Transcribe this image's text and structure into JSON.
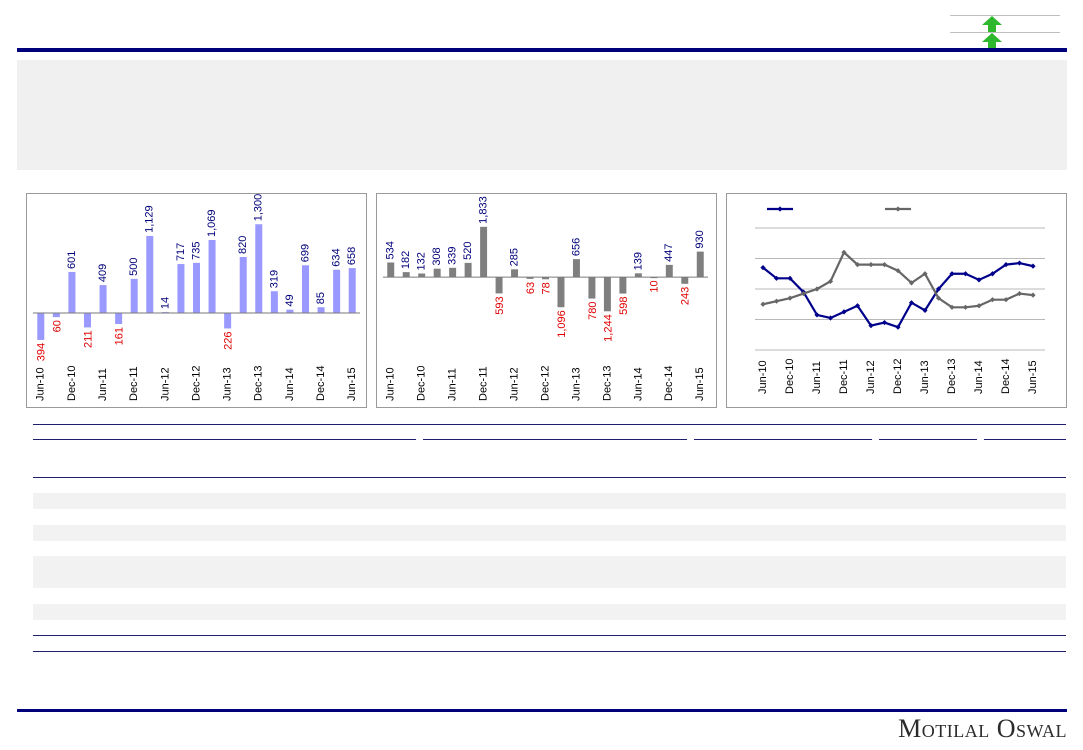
{
  "colors": {
    "brand_navy": "#00007a",
    "bar_blue": "#9999ff",
    "bar_grey": "#7f7f7f",
    "label_positive": "#00007a",
    "label_negative": "#e00000",
    "series_navy": "#00008b",
    "series_grey": "#666666",
    "arrow_green": "#2eb82e"
  },
  "icons": {
    "trend_arrows": [
      "up-arrow-icon",
      "up-arrow-icon"
    ]
  },
  "brand": {
    "logo_text": "Motilal Oswal"
  },
  "chart_data": [
    {
      "type": "bar",
      "categories": [
        "Jun-10",
        "Sep-10",
        "Dec-10",
        "Mar-11",
        "Jun-11",
        "Sep-11",
        "Dec-11",
        "Mar-12",
        "Jun-12",
        "Sep-12",
        "Dec-12",
        "Mar-13",
        "Jun-13",
        "Sep-13",
        "Dec-13",
        "Mar-14",
        "Jun-14",
        "Sep-14",
        "Dec-14",
        "Mar-15",
        "Jun-15"
      ],
      "tick_labels": [
        "Jun-10",
        "",
        "Dec-10",
        "",
        "Jun-11",
        "",
        "Dec-11",
        "",
        "Jun-12",
        "",
        "Dec-12",
        "",
        "Jun-13",
        "",
        "Dec-13",
        "",
        "Jun-14",
        "",
        "Dec-14",
        "",
        "Jun-15"
      ],
      "values": [
        -394,
        -60,
        601,
        -211,
        409,
        -161,
        500,
        1129,
        14,
        717,
        735,
        1069,
        -226,
        820,
        1300,
        319,
        49,
        699,
        85,
        634,
        658
      ],
      "labels": [
        "394",
        "60",
        "601",
        "211",
        "409",
        "161",
        "500",
        "1,129",
        "14",
        "717",
        "735",
        "1,069",
        "226",
        "820",
        "1,300",
        "319",
        "49",
        "699",
        "85",
        "634",
        "658"
      ],
      "ylim": [
        -600,
        1450
      ]
    },
    {
      "type": "bar",
      "categories": [
        "Jun-10",
        "Sep-10",
        "Dec-10",
        "Mar-11",
        "Jun-11",
        "Sep-11",
        "Dec-11",
        "Mar-12",
        "Jun-12",
        "Sep-12",
        "Dec-12",
        "Mar-13",
        "Jun-13",
        "Sep-13",
        "Dec-13",
        "Mar-14",
        "Jun-14",
        "Sep-14",
        "Dec-14",
        "Mar-15",
        "Jun-15"
      ],
      "tick_labels": [
        "Jun-10",
        "",
        "Dec-10",
        "",
        "Jun-11",
        "",
        "Dec-11",
        "",
        "Jun-12",
        "",
        "Dec-12",
        "",
        "Jun-13",
        "",
        "Dec-13",
        "",
        "Jun-14",
        "",
        "Dec-14",
        "",
        "Jun-15"
      ],
      "values": [
        534,
        182,
        132,
        308,
        339,
        520,
        1833,
        -593,
        285,
        -63,
        -78,
        -1096,
        656,
        -780,
        -1244,
        -598,
        139,
        -10,
        447,
        -243,
        930
      ],
      "labels": [
        "534",
        "182",
        "132",
        "308",
        "339",
        "520",
        "1,833",
        "593",
        "285",
        "63",
        "78",
        "1,096",
        "656",
        "780",
        "1,244",
        "598",
        "139",
        "10",
        "447",
        "243",
        "930"
      ],
      "ylim": [
        -2800,
        2300
      ]
    },
    {
      "type": "line",
      "x": [
        "Jun-10",
        "Sep-10",
        "Dec-10",
        "Mar-11",
        "Jun-11",
        "Sep-11",
        "Dec-11",
        "Mar-12",
        "Jun-12",
        "Sep-12",
        "Dec-12",
        "Mar-13",
        "Jun-13",
        "Sep-13",
        "Dec-13",
        "Mar-14",
        "Jun-14",
        "Sep-14",
        "Dec-14",
        "Mar-15",
        "Jun-15"
      ],
      "tick_labels": [
        "Jun-10",
        "Dec-10",
        "Jun-11",
        "Dec-11",
        "Jun-12",
        "Dec-12",
        "Jun-13",
        "Dec-13",
        "Jun-14",
        "Dec-14",
        "Jun-15"
      ],
      "series": [
        {
          "values": [
            84,
            77,
            77,
            68,
            53,
            51,
            55,
            59,
            46,
            48,
            45,
            61,
            56,
            70,
            80,
            80,
            76,
            80,
            86,
            87,
            85
          ]
        },
        {
          "values": [
            60,
            62,
            64,
            67,
            70,
            75,
            94,
            86,
            86,
            86,
            82,
            74,
            80,
            64,
            58,
            58,
            59,
            63,
            63,
            67,
            66
          ]
        }
      ],
      "grid": true,
      "ylim": [
        30,
        110
      ]
    }
  ]
}
